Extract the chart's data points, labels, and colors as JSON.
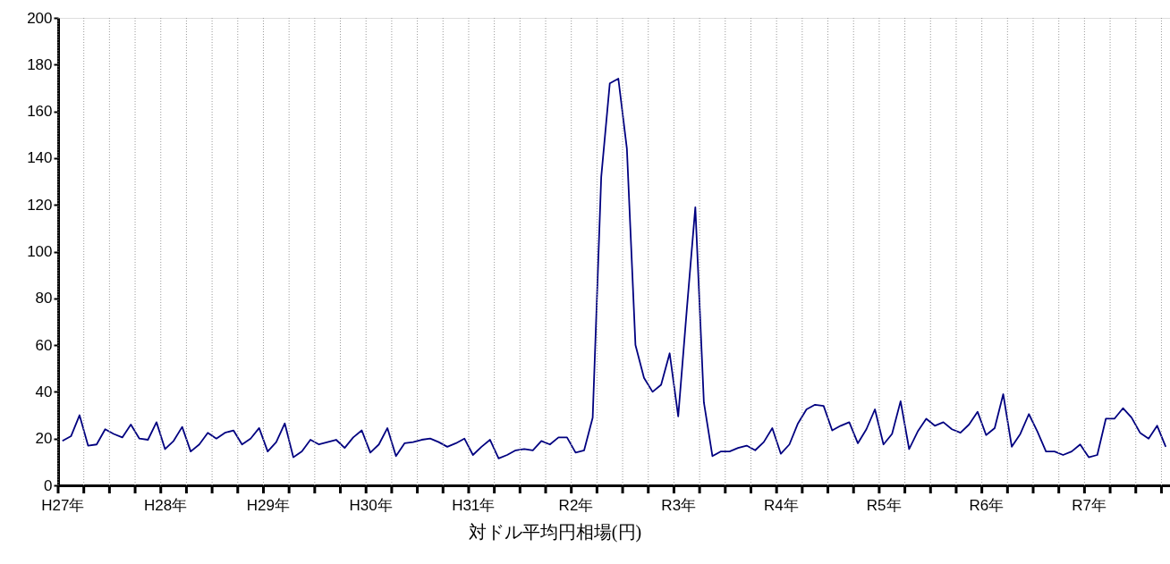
{
  "chart_data": {
    "type": "line",
    "xlabel": "対ドル平均円相場(円)",
    "categories": [
      "H27年",
      null,
      null,
      null,
      null,
      null,
      null,
      null,
      null,
      null,
      null,
      null,
      "H28年",
      null,
      null,
      null,
      null,
      null,
      null,
      null,
      null,
      null,
      null,
      null,
      "H29年",
      null,
      null,
      null,
      null,
      null,
      null,
      null,
      null,
      null,
      null,
      null,
      "H30年",
      null,
      null,
      null,
      null,
      null,
      null,
      null,
      null,
      null,
      null,
      null,
      "H31年",
      null,
      null,
      null,
      null,
      null,
      null,
      null,
      null,
      null,
      null,
      null,
      "R2年",
      null,
      null,
      null,
      null,
      null,
      null,
      null,
      null,
      null,
      null,
      null,
      "R3年",
      null,
      null,
      null,
      null,
      null,
      null,
      null,
      null,
      null,
      null,
      null,
      "R4年",
      null,
      null,
      null,
      null,
      null,
      null,
      null,
      null,
      null,
      null,
      null,
      "R5年",
      null,
      null,
      null,
      null,
      null,
      null,
      null,
      null,
      null,
      null,
      null,
      "R6年",
      null,
      null,
      null,
      null,
      null,
      null,
      null,
      null,
      null,
      null,
      null,
      "R7年",
      null,
      null,
      null,
      null,
      null,
      null,
      null,
      null,
      null
    ],
    "series": [
      {
        "color": "#000080",
        "values": [
          19,
          21,
          30,
          17,
          17.5,
          24,
          22,
          20.5,
          26,
          20,
          19.5,
          27,
          15.5,
          19,
          25,
          14.5,
          17.5,
          22.5,
          20,
          22.5,
          23.5,
          17.5,
          20,
          24.5,
          14.5,
          18.5,
          26.5,
          12,
          14.5,
          19.5,
          17.5,
          18.5,
          19.5,
          16,
          20.5,
          23.5,
          14,
          17.5,
          24.5,
          12.5,
          18,
          18.5,
          19.5,
          20,
          18.5,
          16.5,
          18,
          20,
          13,
          16.5,
          19.5,
          11.5,
          13,
          15,
          15.5,
          15,
          19,
          17.5,
          20.5,
          20.5,
          14,
          15,
          29,
          132,
          172,
          174,
          144,
          60,
          46,
          40,
          43,
          56.5,
          29.5,
          75,
          119,
          35.5,
          12.5,
          14.5,
          14.5,
          16,
          17,
          15,
          18.5,
          24.5,
          13.5,
          17.5,
          26.5,
          32.5,
          34.5,
          34,
          23.5,
          25.5,
          27,
          18,
          24,
          32.5,
          17.5,
          22,
          36,
          15.5,
          23,
          28.5,
          25.5,
          27,
          24,
          22.5,
          26,
          31.5,
          21.5,
          24.5,
          39,
          16.5,
          22,
          30.5,
          23,
          14.5,
          14.5,
          13,
          14.5,
          17.5,
          12,
          13,
          28.5,
          28.5,
          33,
          29,
          22.5,
          20,
          25.5,
          16.5
        ]
      }
    ],
    "ylim": [
      0,
      200
    ],
    "yticks": [
      0,
      20,
      40,
      60,
      80,
      100,
      120,
      140,
      160,
      180,
      200
    ],
    "grid": "x",
    "marker": "none",
    "line_style": "solid"
  }
}
